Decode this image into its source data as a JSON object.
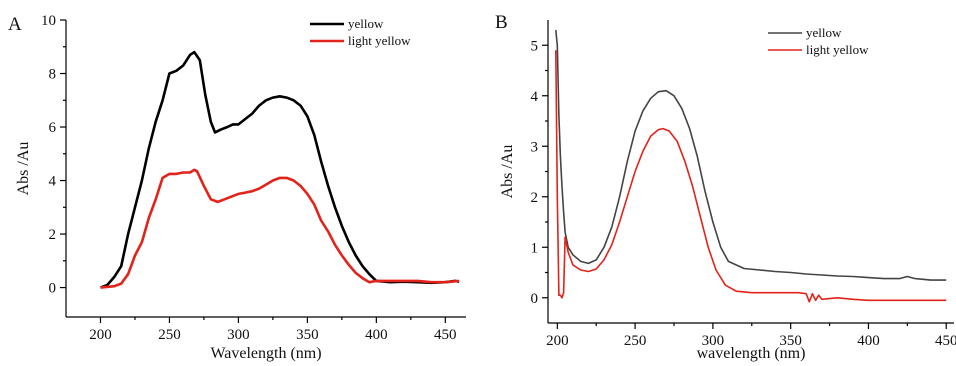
{
  "chart_data": [
    {
      "panel": "A",
      "type": "line",
      "xlabel": "Wavelength (nm)",
      "ylabel": "Abs /Au",
      "xlim": [
        175,
        465
      ],
      "ylim": [
        -1.1,
        10
      ],
      "xticks": [
        200,
        250,
        300,
        350,
        400,
        450
      ],
      "yticks": [
        0,
        2,
        4,
        6,
        8,
        10
      ],
      "legend_position": "top-right",
      "series": [
        {
          "name": "yellow",
          "color": "#000000",
          "points": [
            [
              200,
              0.0
            ],
            [
              205,
              0.1
            ],
            [
              210,
              0.4
            ],
            [
              215,
              0.8
            ],
            [
              220,
              2.0
            ],
            [
              225,
              3.0
            ],
            [
              230,
              4.0
            ],
            [
              235,
              5.2
            ],
            [
              240,
              6.2
            ],
            [
              245,
              7.0
            ],
            [
              250,
              8.0
            ],
            [
              255,
              8.1
            ],
            [
              260,
              8.3
            ],
            [
              265,
              8.7
            ],
            [
              268,
              8.8
            ],
            [
              272,
              8.5
            ],
            [
              276,
              7.2
            ],
            [
              280,
              6.2
            ],
            [
              283,
              5.8
            ],
            [
              287,
              5.9
            ],
            [
              292,
              6.0
            ],
            [
              296,
              6.1
            ],
            [
              300,
              6.1
            ],
            [
              305,
              6.3
            ],
            [
              310,
              6.5
            ],
            [
              315,
              6.8
            ],
            [
              320,
              7.0
            ],
            [
              325,
              7.1
            ],
            [
              330,
              7.15
            ],
            [
              335,
              7.1
            ],
            [
              340,
              7.0
            ],
            [
              345,
              6.8
            ],
            [
              350,
              6.4
            ],
            [
              355,
              5.7
            ],
            [
              360,
              4.7
            ],
            [
              365,
              3.8
            ],
            [
              370,
              3.0
            ],
            [
              375,
              2.3
            ],
            [
              380,
              1.7
            ],
            [
              385,
              1.2
            ],
            [
              390,
              0.8
            ],
            [
              395,
              0.5
            ],
            [
              400,
              0.25
            ],
            [
              410,
              0.2
            ],
            [
              420,
              0.22
            ],
            [
              430,
              0.2
            ],
            [
              440,
              0.18
            ],
            [
              450,
              0.2
            ],
            [
              457,
              0.25
            ],
            [
              460,
              0.22
            ]
          ]
        },
        {
          "name": "light yellow",
          "color": "#e2231a",
          "points": [
            [
              200,
              0.0
            ],
            [
              210,
              0.05
            ],
            [
              215,
              0.15
            ],
            [
              220,
              0.5
            ],
            [
              225,
              1.2
            ],
            [
              230,
              1.7
            ],
            [
              235,
              2.6
            ],
            [
              240,
              3.3
            ],
            [
              245,
              4.1
            ],
            [
              250,
              4.25
            ],
            [
              255,
              4.25
            ],
            [
              260,
              4.3
            ],
            [
              265,
              4.3
            ],
            [
              268,
              4.4
            ],
            [
              270,
              4.35
            ],
            [
              275,
              3.8
            ],
            [
              280,
              3.3
            ],
            [
              285,
              3.2
            ],
            [
              290,
              3.3
            ],
            [
              295,
              3.4
            ],
            [
              300,
              3.5
            ],
            [
              305,
              3.55
            ],
            [
              310,
              3.6
            ],
            [
              315,
              3.7
            ],
            [
              320,
              3.85
            ],
            [
              325,
              4.0
            ],
            [
              330,
              4.1
            ],
            [
              335,
              4.1
            ],
            [
              340,
              4.0
            ],
            [
              345,
              3.8
            ],
            [
              350,
              3.5
            ],
            [
              355,
              3.1
            ],
            [
              360,
              2.5
            ],
            [
              365,
              2.1
            ],
            [
              370,
              1.6
            ],
            [
              375,
              1.2
            ],
            [
              380,
              0.85
            ],
            [
              385,
              0.55
            ],
            [
              390,
              0.35
            ],
            [
              395,
              0.2
            ],
            [
              400,
              0.25
            ],
            [
              410,
              0.25
            ],
            [
              420,
              0.25
            ],
            [
              430,
              0.25
            ],
            [
              440,
              0.2
            ],
            [
              450,
              0.2
            ],
            [
              460,
              0.25
            ]
          ]
        }
      ]
    },
    {
      "panel": "B",
      "type": "line",
      "xlabel": "wavelength (nm)",
      "ylabel": "Abs /Au",
      "xlim": [
        194,
        455
      ],
      "ylim": [
        -0.5,
        5.5
      ],
      "xticks": [
        200,
        250,
        300,
        350,
        400,
        450
      ],
      "yticks": [
        0,
        1,
        2,
        3,
        4,
        5
      ],
      "legend_position": "top-right",
      "series": [
        {
          "name": "yellow",
          "color": "#444444",
          "points": [
            [
              199,
              5.3
            ],
            [
              200,
              5.0
            ],
            [
              201,
              3.6
            ],
            [
              202,
              2.8
            ],
            [
              203,
              2.2
            ],
            [
              204,
              1.7
            ],
            [
              205,
              1.3
            ],
            [
              207,
              1.0
            ],
            [
              210,
              0.85
            ],
            [
              215,
              0.72
            ],
            [
              220,
              0.68
            ],
            [
              225,
              0.75
            ],
            [
              230,
              1.0
            ],
            [
              235,
              1.4
            ],
            [
              240,
              2.0
            ],
            [
              245,
              2.7
            ],
            [
              250,
              3.3
            ],
            [
              255,
              3.7
            ],
            [
              260,
              3.95
            ],
            [
              265,
              4.08
            ],
            [
              270,
              4.1
            ],
            [
              275,
              4.0
            ],
            [
              280,
              3.75
            ],
            [
              285,
              3.35
            ],
            [
              290,
              2.8
            ],
            [
              295,
              2.1
            ],
            [
              300,
              1.5
            ],
            [
              305,
              1.0
            ],
            [
              310,
              0.72
            ],
            [
              320,
              0.58
            ],
            [
              330,
              0.55
            ],
            [
              340,
              0.52
            ],
            [
              350,
              0.5
            ],
            [
              360,
              0.47
            ],
            [
              370,
              0.45
            ],
            [
              380,
              0.43
            ],
            [
              390,
              0.42
            ],
            [
              400,
              0.4
            ],
            [
              410,
              0.38
            ],
            [
              420,
              0.38
            ],
            [
              425,
              0.42
            ],
            [
              430,
              0.38
            ],
            [
              440,
              0.35
            ],
            [
              450,
              0.35
            ]
          ]
        },
        {
          "name": "light yellow",
          "color": "#e2231a",
          "points": [
            [
              199,
              4.9
            ],
            [
              200,
              2.0
            ],
            [
              201,
              0.05
            ],
            [
              202,
              0.05
            ],
            [
              203,
              0.0
            ],
            [
              204,
              0.1
            ],
            [
              205,
              1.2
            ],
            [
              207,
              0.9
            ],
            [
              210,
              0.65
            ],
            [
              215,
              0.55
            ],
            [
              220,
              0.52
            ],
            [
              225,
              0.57
            ],
            [
              230,
              0.75
            ],
            [
              235,
              1.05
            ],
            [
              240,
              1.5
            ],
            [
              245,
              2.0
            ],
            [
              250,
              2.5
            ],
            [
              255,
              2.9
            ],
            [
              260,
              3.2
            ],
            [
              265,
              3.33
            ],
            [
              268,
              3.35
            ],
            [
              272,
              3.3
            ],
            [
              277,
              3.1
            ],
            [
              282,
              2.7
            ],
            [
              287,
              2.2
            ],
            [
              292,
              1.6
            ],
            [
              297,
              1.0
            ],
            [
              302,
              0.55
            ],
            [
              308,
              0.25
            ],
            [
              315,
              0.13
            ],
            [
              325,
              0.1
            ],
            [
              340,
              0.1
            ],
            [
              355,
              0.1
            ],
            [
              360,
              0.08
            ],
            [
              362,
              -0.08
            ],
            [
              364,
              0.08
            ],
            [
              366,
              -0.05
            ],
            [
              368,
              0.05
            ],
            [
              370,
              -0.03
            ],
            [
              380,
              0.0
            ],
            [
              390,
              -0.03
            ],
            [
              400,
              -0.05
            ],
            [
              420,
              -0.05
            ],
            [
              440,
              -0.05
            ],
            [
              450,
              -0.05
            ]
          ]
        }
      ]
    }
  ]
}
